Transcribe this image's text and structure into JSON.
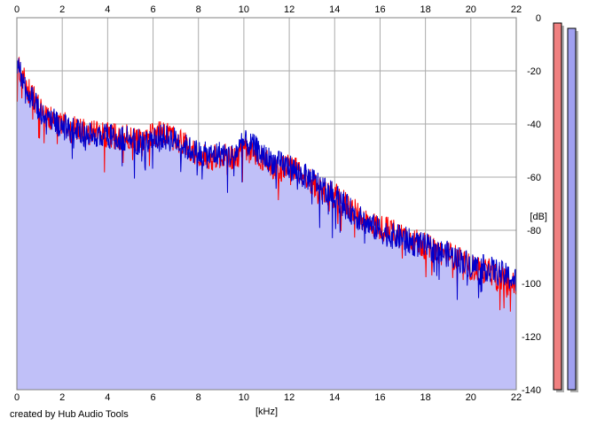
{
  "credit": "created by Hub Audio Tools",
  "colors": {
    "background": "#ffffff",
    "fill": "#c0c0f8",
    "left_channel": "#ff0000",
    "right_channel": "#0000cc",
    "grid": "#aaaaaa",
    "meter_left": "#f08080",
    "meter_right": "#a0a0f0"
  },
  "chart_data": {
    "type": "line",
    "xlabel": "[kHz]",
    "ylabel": "[dB]",
    "xlim": [
      0,
      22
    ],
    "ylim": [
      -140,
      0
    ],
    "x_ticks": [
      "0",
      "2",
      "4",
      "6",
      "8",
      "10",
      "12",
      "14",
      "16",
      "18",
      "20",
      "22"
    ],
    "y_ticks": [
      "0",
      "-20",
      "-40",
      "-60",
      "-80",
      "-100",
      "-120",
      "-140"
    ],
    "grid": true,
    "legend": "none",
    "series": [
      {
        "color": "#ff0000",
        "x": [
          0,
          0.5,
          1,
          1.5,
          2,
          2.5,
          3,
          3.5,
          4,
          4.5,
          5,
          5.5,
          6,
          6.5,
          7,
          7.5,
          8,
          8.5,
          9,
          9.5,
          10,
          10.5,
          11,
          11.5,
          12,
          12.5,
          13,
          13.5,
          14,
          14.5,
          15,
          15.5,
          16,
          16.5,
          17,
          17.5,
          18,
          18.5,
          19,
          19.5,
          20,
          20.5,
          21,
          21.5,
          22
        ],
        "values": [
          -18,
          -27,
          -34,
          -38,
          -40,
          -42,
          -43,
          -43,
          -44,
          -45,
          -45,
          -46,
          -44,
          -44,
          -45,
          -48,
          -52,
          -53,
          -52,
          -53,
          -50,
          -51,
          -54,
          -57,
          -56,
          -58,
          -62,
          -65,
          -67,
          -70,
          -74,
          -77,
          -79,
          -80,
          -82,
          -84,
          -86,
          -88,
          -89,
          -91,
          -94,
          -95,
          -96,
          -99,
          -101
        ]
      },
      {
        "color": "#0000cc",
        "x": [
          0,
          0.5,
          1,
          1.5,
          2,
          2.5,
          3,
          3.5,
          4,
          4.5,
          5,
          5.5,
          6,
          6.5,
          7,
          7.5,
          8,
          8.5,
          9,
          9.5,
          10,
          10.5,
          11,
          11.5,
          12,
          12.5,
          13,
          13.5,
          14,
          14.5,
          15,
          15.5,
          16,
          16.5,
          17,
          17.5,
          18,
          18.5,
          19,
          19.5,
          20,
          20.5,
          21,
          21.5,
          22
        ],
        "values": [
          -17,
          -28,
          -35,
          -38,
          -41,
          -42,
          -44,
          -44,
          -45,
          -45,
          -46,
          -47,
          -45,
          -45,
          -46,
          -49,
          -51,
          -52,
          -51,
          -52,
          -47,
          -49,
          -53,
          -55,
          -56,
          -59,
          -61,
          -64,
          -67,
          -71,
          -75,
          -78,
          -80,
          -82,
          -83,
          -85,
          -86,
          -88,
          -89,
          -91,
          -93,
          -94,
          -95,
          -97,
          -99
        ]
      }
    ]
  },
  "meters": {
    "range": [
      -140,
      0
    ],
    "left_level": -2,
    "right_level": -4
  }
}
